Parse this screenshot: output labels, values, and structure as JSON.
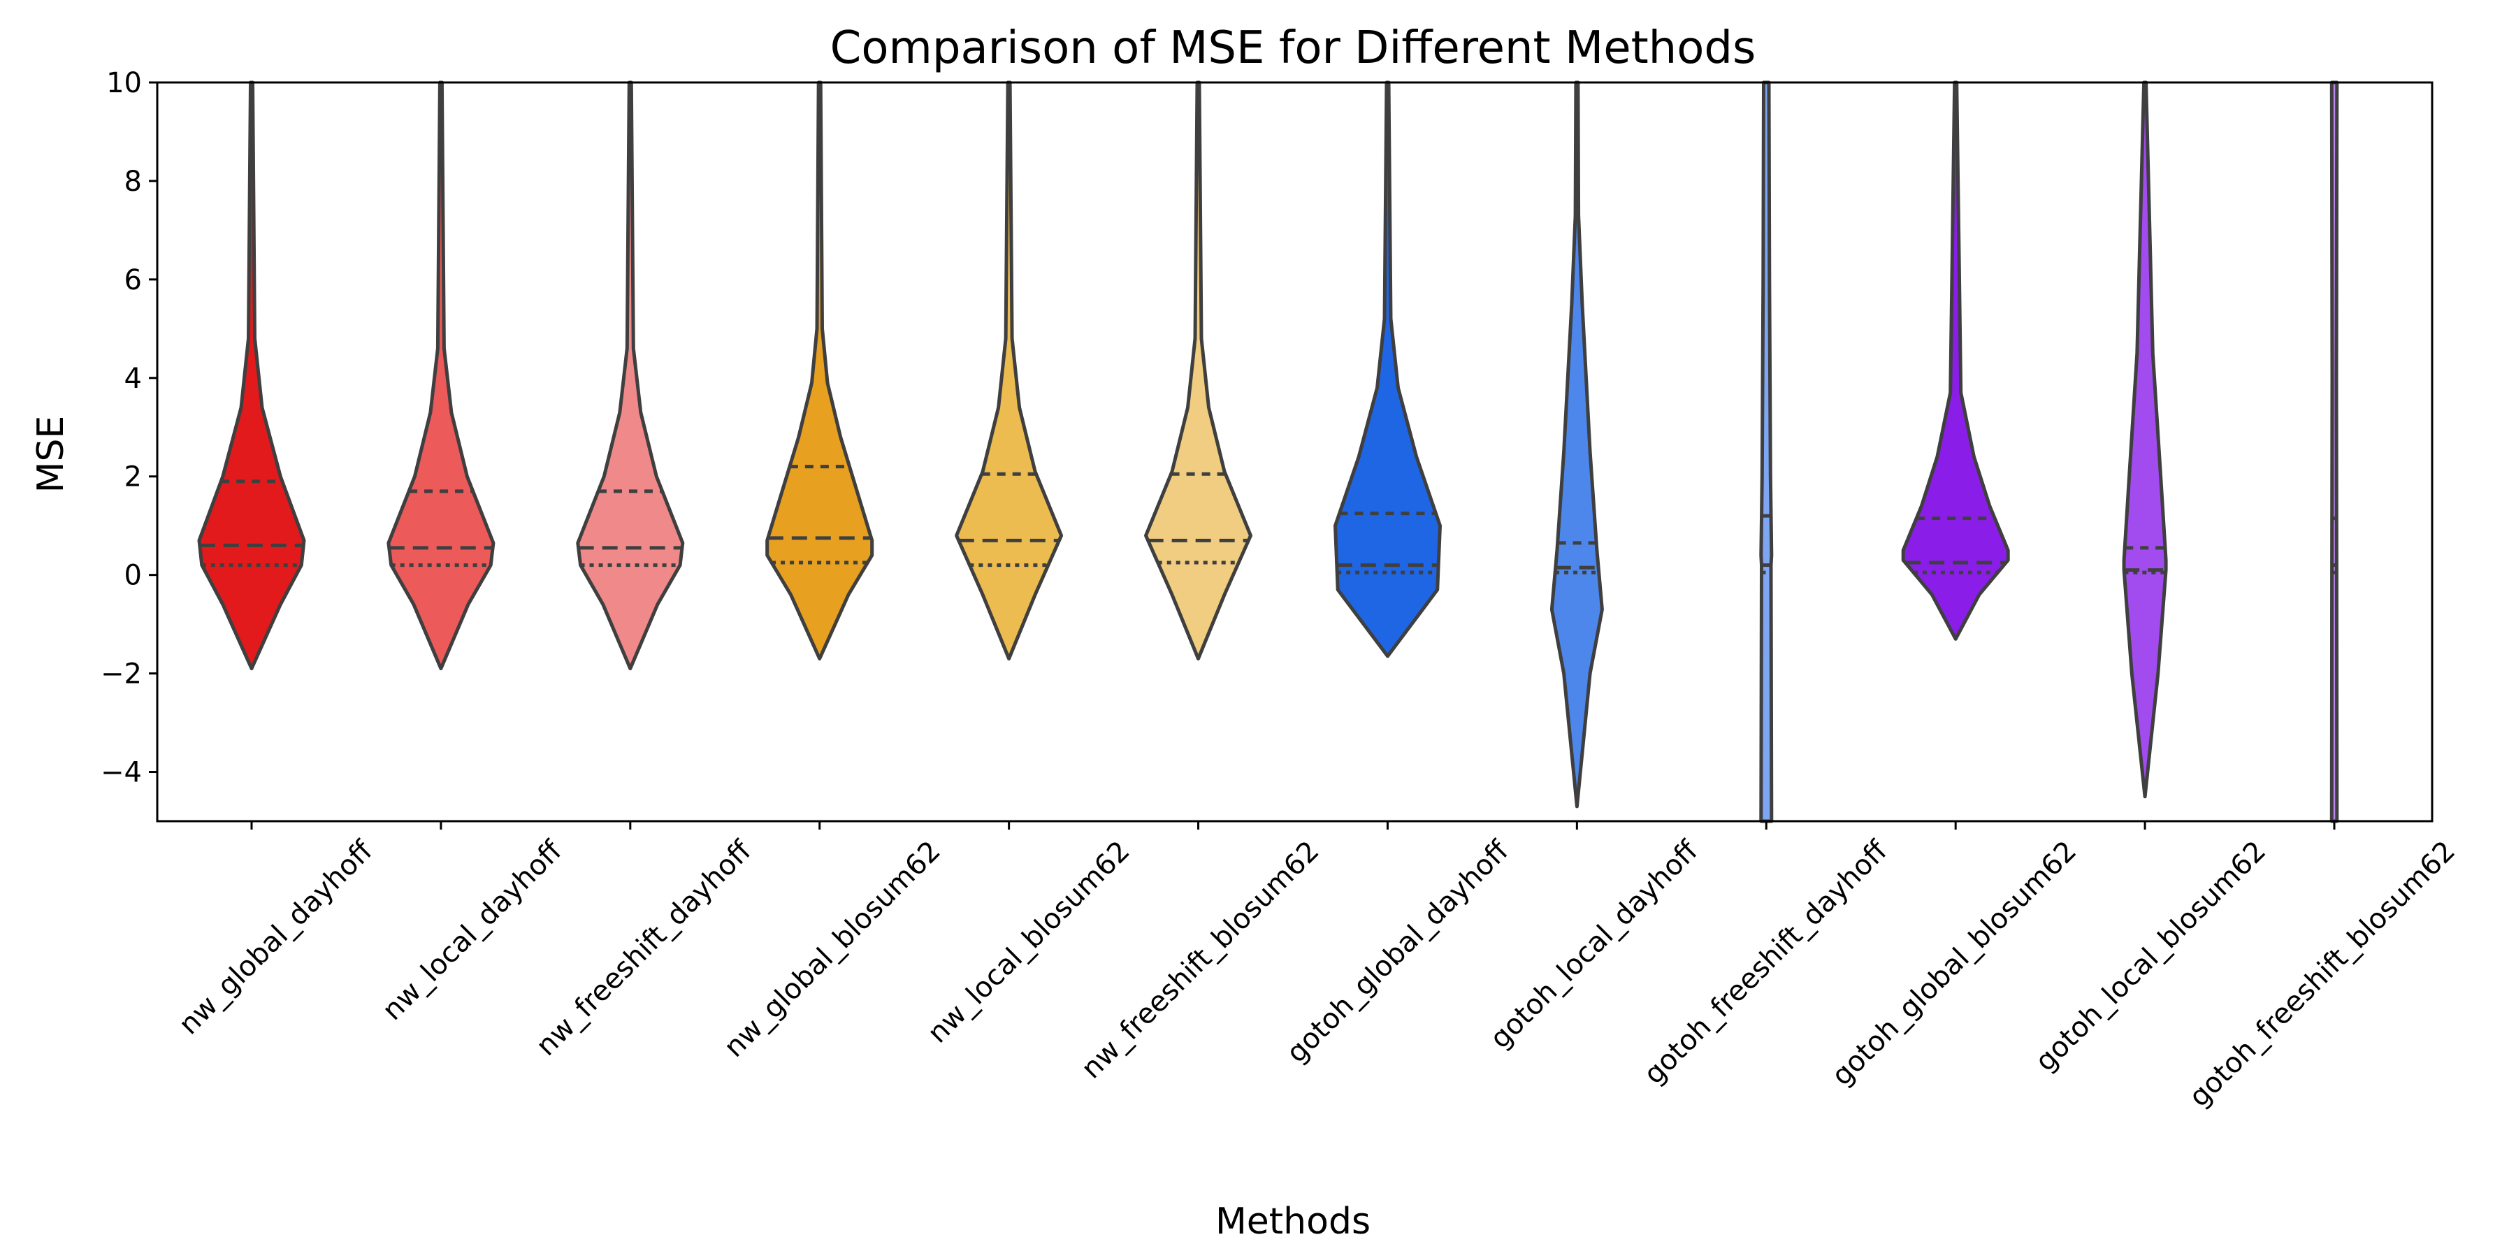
{
  "chart_data": {
    "type": "violin",
    "title": "Comparison of MSE for Different Methods",
    "xlabel": "Methods",
    "ylabel": "MSE",
    "ylim": [
      -5,
      10
    ],
    "yticks": [
      -4,
      -2,
      0,
      2,
      4,
      6,
      8,
      10
    ],
    "grid": false,
    "legend": "none",
    "inner": "quartile",
    "categories": [
      "nw_global_dayhoff",
      "nw_local_dayhoff",
      "nw_freeshift_dayhoff",
      "nw_global_blosum62",
      "nw_local_blosum62",
      "nw_freeshift_blosum62",
      "gotoh_global_dayhoff",
      "gotoh_local_dayhoff",
      "gotoh_freeshift_dayhoff",
      "gotoh_global_blosum62",
      "gotoh_local_blosum62",
      "gotoh_freeshift_blosum62"
    ],
    "colors": [
      "#e31a1c",
      "#ec5a5a",
      "#f08a8a",
      "#e8a020",
      "#ecbc50",
      "#f0cd80",
      "#1f66e5",
      "#4d87ec",
      "#7ea6f2",
      "#8a1ee8",
      "#a24bee",
      "#bf85f2"
    ],
    "quartiles": [
      {
        "q1": 0.2,
        "median": 0.6,
        "q3": 1.9
      },
      {
        "q1": 0.2,
        "median": 0.55,
        "q3": 1.7
      },
      {
        "q1": 0.2,
        "median": 0.55,
        "q3": 1.7
      },
      {
        "q1": 0.25,
        "median": 0.75,
        "q3": 2.2
      },
      {
        "q1": 0.2,
        "median": 0.7,
        "q3": 2.05
      },
      {
        "q1": 0.25,
        "median": 0.7,
        "q3": 2.05
      },
      {
        "q1": 0.05,
        "median": 0.2,
        "q3": 1.25
      },
      {
        "q1": 0.05,
        "median": 0.15,
        "q3": 0.65
      },
      {
        "q1": 0.05,
        "median": 0.2,
        "q3": 1.2
      },
      {
        "q1": 0.05,
        "median": 0.25,
        "q3": 1.15
      },
      {
        "q1": 0.05,
        "median": 0.1,
        "q3": 0.55
      },
      {
        "q1": 0.05,
        "median": 0.2,
        "q3": 1.15
      }
    ],
    "density_profiles": [
      [
        [
          -1.9,
          0
        ],
        [
          -0.6,
          0.55
        ],
        [
          0.2,
          0.95
        ],
        [
          0.7,
          1.0
        ],
        [
          2.0,
          0.55
        ],
        [
          3.4,
          0.2
        ],
        [
          4.8,
          0.06
        ],
        [
          10,
          0.02
        ]
      ],
      [
        [
          -1.9,
          0
        ],
        [
          -0.6,
          0.52
        ],
        [
          0.2,
          0.95
        ],
        [
          0.65,
          1.0
        ],
        [
          2.0,
          0.5
        ],
        [
          3.3,
          0.2
        ],
        [
          4.6,
          0.06
        ],
        [
          10,
          0.02
        ]
      ],
      [
        [
          -1.9,
          0
        ],
        [
          -0.6,
          0.52
        ],
        [
          0.2,
          0.95
        ],
        [
          0.65,
          1.0
        ],
        [
          2.0,
          0.5
        ],
        [
          3.3,
          0.2
        ],
        [
          4.6,
          0.06
        ],
        [
          10,
          0.02
        ]
      ],
      [
        [
          -1.7,
          0
        ],
        [
          -0.4,
          0.55
        ],
        [
          0.4,
          1.0
        ],
        [
          0.7,
          1.0
        ],
        [
          2.8,
          0.4
        ],
        [
          3.9,
          0.15
        ],
        [
          5.0,
          0.05
        ],
        [
          10,
          0.02
        ]
      ],
      [
        [
          -1.7,
          0
        ],
        [
          -0.4,
          0.5
        ],
        [
          0.8,
          1.0
        ],
        [
          2.1,
          0.5
        ],
        [
          3.4,
          0.2
        ],
        [
          4.8,
          0.06
        ],
        [
          10,
          0.02
        ]
      ],
      [
        [
          -1.7,
          0
        ],
        [
          -0.4,
          0.5
        ],
        [
          0.8,
          1.0
        ],
        [
          2.1,
          0.5
        ],
        [
          3.4,
          0.2
        ],
        [
          4.8,
          0.06
        ],
        [
          10,
          0.02
        ]
      ],
      [
        [
          -1.65,
          0
        ],
        [
          -0.3,
          0.95
        ],
        [
          1.0,
          1.0
        ],
        [
          2.4,
          0.55
        ],
        [
          3.8,
          0.2
        ],
        [
          5.2,
          0.06
        ],
        [
          10,
          0.02
        ]
      ],
      [
        [
          -4.7,
          0
        ],
        [
          -2.0,
          0.25
        ],
        [
          -0.7,
          0.48
        ],
        [
          0.5,
          0.38
        ],
        [
          2.5,
          0.25
        ],
        [
          5.5,
          0.1
        ],
        [
          7.3,
          0.03
        ],
        [
          10,
          0.02
        ]
      ],
      [
        [
          -5,
          0.1
        ],
        [
          0.2,
          0.09
        ],
        [
          0.4,
          0.1
        ],
        [
          2.0,
          0.08
        ],
        [
          6.0,
          0.06
        ],
        [
          10,
          0.05
        ]
      ],
      [
        [
          -1.3,
          0
        ],
        [
          -0.4,
          0.45
        ],
        [
          0.3,
          1.0
        ],
        [
          0.5,
          1.0
        ],
        [
          1.4,
          0.65
        ],
        [
          2.4,
          0.35
        ],
        [
          3.7,
          0.1
        ],
        [
          10,
          0.02
        ]
      ],
      [
        [
          -4.5,
          0
        ],
        [
          -2.0,
          0.25
        ],
        [
          0.1,
          0.4
        ],
        [
          0.3,
          0.4
        ],
        [
          2.0,
          0.3
        ],
        [
          4.5,
          0.15
        ],
        [
          10,
          0.02
        ]
      ],
      [
        [
          -5,
          0.05
        ],
        [
          0.0,
          0.045
        ],
        [
          4.0,
          0.04
        ],
        [
          10,
          0.05
        ]
      ]
    ]
  }
}
